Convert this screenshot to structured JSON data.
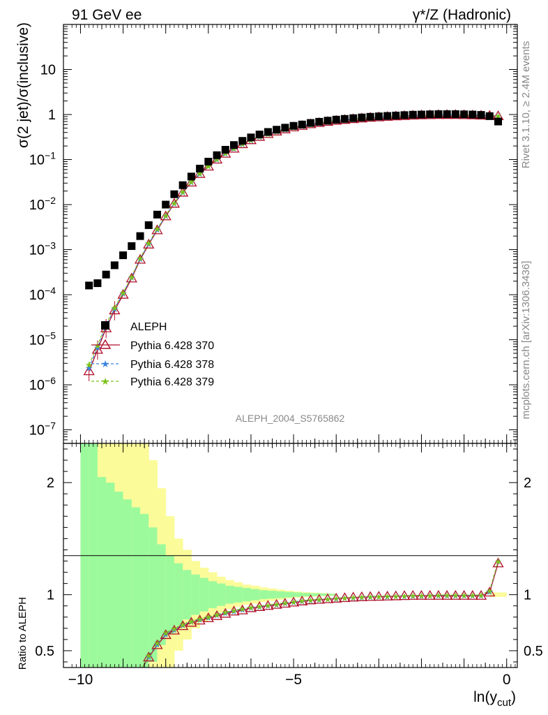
{
  "header": {
    "left_title": "91 GeV ee",
    "right_title": "γ*/Z (Hadronic)"
  },
  "side_labels": {
    "rivet": "Rivet 3.1.10, ≥ 2.4M events",
    "mcplots": "mcplots.cern.ch [arXiv:1306.3436]"
  },
  "watermark": "ALEPH_2004_S5765862",
  "colors": {
    "aleph": "#000000",
    "p370": "#b0102a",
    "p378": "#3b82e0",
    "p379": "#7cc21a",
    "band_inner": "#9cfa9c",
    "band_outer": "#fbfb9a"
  },
  "chart_data": [
    {
      "type": "scatter",
      "panel": "main",
      "ylabel": "σ(2 jet)/σ(inclusive)",
      "xlabel": "",
      "y_scale": "log",
      "xlim": [
        -10.4,
        0.25
      ],
      "ylim": [
        5e-08,
        100
      ],
      "x_ticks": [
        "−10",
        "−5",
        "0"
      ],
      "y_ticks": [
        "10⁻⁷",
        "10⁻⁶",
        "10⁻⁵",
        "10⁻⁴",
        "10⁻³",
        "10⁻²",
        "10⁻¹",
        "1",
        "10"
      ],
      "x": [
        -9.8,
        -9.6,
        -9.4,
        -9.2,
        -9.0,
        -8.8,
        -8.6,
        -8.4,
        -8.2,
        -8.0,
        -7.8,
        -7.6,
        -7.4,
        -7.2,
        -7.0,
        -6.8,
        -6.6,
        -6.4,
        -6.2,
        -6.0,
        -5.8,
        -5.6,
        -5.4,
        -5.2,
        -5.0,
        -4.8,
        -4.6,
        -4.4,
        -4.2,
        -4.0,
        -3.8,
        -3.6,
        -3.4,
        -3.2,
        -3.0,
        -2.8,
        -2.6,
        -2.4,
        -2.2,
        -2.0,
        -1.8,
        -1.6,
        -1.4,
        -1.2,
        -1.0,
        -0.8,
        -0.6,
        -0.4,
        -0.2
      ],
      "series": [
        {
          "name": "ALEPH",
          "marker": "square",
          "values": [
            0.00016,
            0.00018,
            0.00028,
            0.00045,
            0.00075,
            0.0012,
            0.002,
            0.0035,
            0.006,
            0.01,
            0.017,
            0.027,
            0.042,
            0.063,
            0.09,
            0.125,
            0.165,
            0.21,
            0.26,
            0.31,
            0.36,
            0.41,
            0.46,
            0.51,
            0.56,
            0.6,
            0.65,
            0.69,
            0.73,
            0.77,
            0.8,
            0.83,
            0.86,
            0.89,
            0.91,
            0.93,
            0.95,
            0.97,
            0.99,
            1.0,
            1.01,
            1.02,
            1.02,
            1.02,
            1.01,
            1.0,
            0.98,
            0.92,
            0.7
          ]
        },
        {
          "name": "Pythia 6.428 370",
          "marker": "triangle-open",
          "values": [
            2e-06,
            6e-06,
            1.8e-05,
            4.5e-05,
            0.0001,
            0.00023,
            0.0006,
            0.0013,
            0.0027,
            0.0055,
            0.0105,
            0.0185,
            0.031,
            0.048,
            0.07,
            0.1,
            0.135,
            0.175,
            0.22,
            0.27,
            0.32,
            0.37,
            0.42,
            0.47,
            0.52,
            0.56,
            0.61,
            0.65,
            0.69,
            0.73,
            0.76,
            0.79,
            0.82,
            0.85,
            0.87,
            0.89,
            0.91,
            0.93,
            0.95,
            0.96,
            0.97,
            0.98,
            0.98,
            0.98,
            0.97,
            0.96,
            0.95,
            0.94,
            0.92
          ]
        },
        {
          "name": "Pythia 6.428 378",
          "marker": "star",
          "values": [
            2.4e-06,
            6.8e-06,
            2e-05,
            4.9e-05,
            0.000108,
            0.000245,
            0.00063,
            0.00135,
            0.0028,
            0.0057,
            0.0108,
            0.019,
            0.032,
            0.049,
            0.072,
            0.102,
            0.138,
            0.178,
            0.224,
            0.274,
            0.325,
            0.375,
            0.425,
            0.475,
            0.525,
            0.57,
            0.615,
            0.655,
            0.695,
            0.735,
            0.765,
            0.795,
            0.825,
            0.855,
            0.875,
            0.895,
            0.915,
            0.935,
            0.955,
            0.965,
            0.975,
            0.985,
            0.99,
            0.99,
            0.985,
            0.975,
            0.965,
            0.955,
            0.935
          ]
        },
        {
          "name": "Pythia 6.428 379",
          "marker": "star",
          "values": [
            2.8e-06,
            7.5e-06,
            2.2e-05,
            5.2e-05,
            0.000112,
            0.00025,
            0.00065,
            0.0014,
            0.0029,
            0.0058,
            0.011,
            0.0195,
            0.0325,
            0.05,
            0.073,
            0.104,
            0.14,
            0.18,
            0.227,
            0.277,
            0.328,
            0.378,
            0.428,
            0.478,
            0.528,
            0.573,
            0.618,
            0.658,
            0.698,
            0.738,
            0.768,
            0.798,
            0.828,
            0.858,
            0.878,
            0.898,
            0.918,
            0.938,
            0.958,
            0.968,
            0.978,
            0.988,
            0.993,
            0.993,
            0.988,
            0.978,
            0.968,
            0.958,
            0.94
          ]
        }
      ]
    },
    {
      "type": "line",
      "panel": "ratio",
      "ylabel": "Ratio to ALEPH",
      "xlabel": "ln(y_cut)",
      "xlim": [
        -10.4,
        0.25
      ],
      "ylim": [
        0.35,
        2.35
      ],
      "x_ticks": [
        "−10",
        "−5",
        "0"
      ],
      "y_ticks": [
        "0.5",
        "1",
        "2"
      ],
      "x": [
        -8.4,
        -8.2,
        -8.0,
        -7.8,
        -7.6,
        -7.4,
        -7.2,
        -7.0,
        -6.8,
        -6.6,
        -6.4,
        -6.2,
        -6.0,
        -5.8,
        -5.6,
        -5.4,
        -5.2,
        -5.0,
        -4.8,
        -4.6,
        -4.4,
        -4.2,
        -4.0,
        -3.8,
        -3.6,
        -3.4,
        -3.2,
        -3.0,
        -2.8,
        -2.6,
        -2.4,
        -2.2,
        -2.0,
        -1.8,
        -1.6,
        -1.4,
        -1.2,
        -1.0,
        -0.8,
        -0.6,
        -0.4,
        -0.2
      ],
      "series": [
        {
          "name": "Pythia 6.428 370",
          "values": [
            0.44,
            0.55,
            0.64,
            0.68,
            0.72,
            0.75,
            0.77,
            0.79,
            0.81,
            0.83,
            0.85,
            0.86,
            0.88,
            0.89,
            0.9,
            0.91,
            0.92,
            0.93,
            0.94,
            0.95,
            0.955,
            0.96,
            0.965,
            0.97,
            0.975,
            0.978,
            0.98,
            0.982,
            0.984,
            0.986,
            0.988,
            0.99,
            0.99,
            0.99,
            0.99,
            0.99,
            0.99,
            0.99,
            0.99,
            0.99,
            1.02,
            1.28
          ]
        },
        {
          "name": "Pythia 6.428 378",
          "values": [
            0.45,
            0.56,
            0.65,
            0.69,
            0.73,
            0.76,
            0.78,
            0.8,
            0.82,
            0.84,
            0.855,
            0.87,
            0.885,
            0.895,
            0.905,
            0.915,
            0.925,
            0.935,
            0.945,
            0.952,
            0.958,
            0.963,
            0.968,
            0.972,
            0.976,
            0.98,
            0.982,
            0.984,
            0.986,
            0.988,
            0.99,
            0.992,
            0.993,
            0.994,
            0.995,
            0.995,
            0.995,
            0.995,
            0.995,
            0.995,
            1.03,
            1.3
          ]
        },
        {
          "name": "Pythia 6.428 379",
          "values": [
            0.46,
            0.57,
            0.66,
            0.7,
            0.735,
            0.765,
            0.785,
            0.805,
            0.825,
            0.845,
            0.86,
            0.875,
            0.888,
            0.898,
            0.908,
            0.918,
            0.928,
            0.938,
            0.947,
            0.954,
            0.96,
            0.965,
            0.97,
            0.974,
            0.978,
            0.981,
            0.984,
            0.986,
            0.988,
            0.99,
            0.992,
            0.994,
            0.995,
            0.996,
            0.997,
            0.997,
            0.997,
            0.997,
            0.997,
            0.997,
            1.04,
            1.3
          ]
        }
      ],
      "bands": {
        "bin_edges": [
          -10.0,
          -9.8,
          -9.6,
          -9.4,
          -9.2,
          -9.0,
          -8.8,
          -8.6,
          -8.4,
          -8.2,
          -8.0,
          -7.8,
          -7.6,
          -7.4,
          -7.2,
          -7.0,
          -6.8,
          -6.6,
          -6.4,
          -6.2,
          -6.0,
          -5.8,
          -5.6,
          -5.4,
          -5.2,
          -5.0,
          -4.8,
          -4.6,
          -4.4,
          -4.2,
          -4.0
        ],
        "inner_half_width": [
          2.0,
          2.0,
          1.05,
          1.0,
          0.92,
          0.85,
          0.78,
          0.72,
          0.6,
          0.45,
          0.35,
          0.28,
          0.22,
          0.18,
          0.15,
          0.12,
          0.1,
          0.08,
          0.07,
          0.06,
          0.05,
          0.04,
          0.035,
          0.03,
          0.025,
          0.02,
          0.015,
          0.012,
          0.01,
          0.008
        ],
        "outer_half_width": [
          2.0,
          2.0,
          2.0,
          2.0,
          2.0,
          2.0,
          2.0,
          1.72,
          1.2,
          0.95,
          0.7,
          0.5,
          0.4,
          0.3,
          0.24,
          0.2,
          0.16,
          0.13,
          0.11,
          0.09,
          0.08,
          0.065,
          0.055,
          0.045,
          0.035,
          0.028,
          0.022,
          0.018,
          0.014,
          0.01
        ]
      }
    }
  ]
}
